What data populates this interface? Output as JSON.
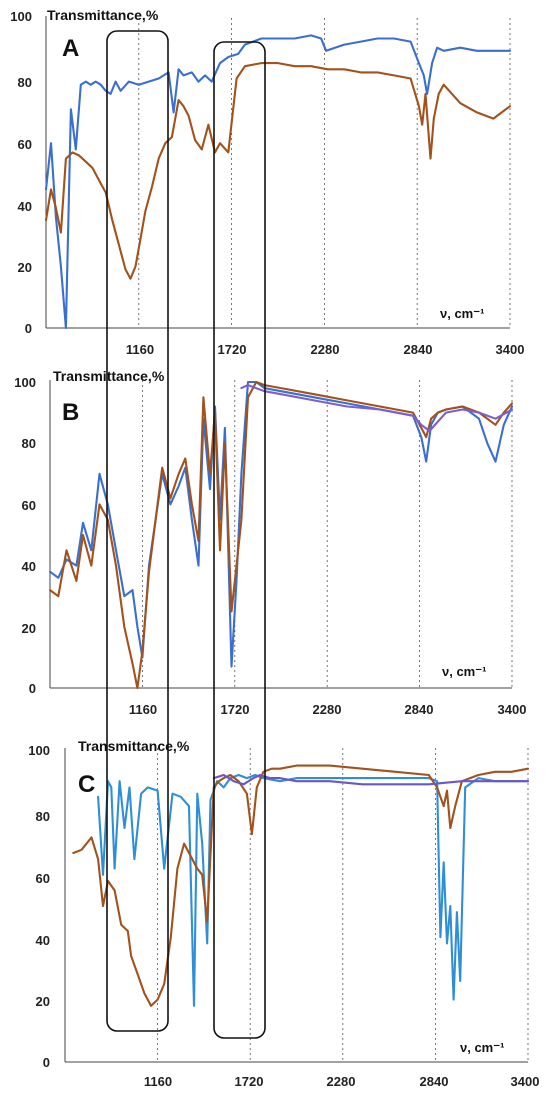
{
  "chart_data": [
    {
      "type": "line",
      "panel": "A",
      "ylabel": "Transmittance,%",
      "xlabel": "ν, cm⁻¹",
      "ylim": [
        0,
        100
      ],
      "xlim": [
        600,
        3400
      ],
      "yticks": [
        "0",
        "20",
        "40",
        "60",
        "80",
        "100"
      ],
      "xticks": [
        "1160",
        "1720",
        "2280",
        "2840",
        "3400"
      ],
      "grid": "x-dotted",
      "series": [
        {
          "color": "#3a6fd0",
          "x": [
            600,
            630,
            660,
            690,
            720,
            750,
            780,
            810,
            840,
            870,
            900,
            930,
            960,
            990,
            1020,
            1050,
            1100,
            1160,
            1220,
            1280,
            1340,
            1370,
            1400,
            1430,
            1480,
            1520,
            1560,
            1600,
            1650,
            1700,
            1760,
            1800,
            1900,
            2000,
            2100,
            2200,
            2260,
            2290,
            2400,
            2500,
            2600,
            2700,
            2800,
            2850,
            2880,
            2900,
            2930,
            2960,
            3000,
            3100,
            3200,
            3300,
            3400
          ],
          "y": [
            45,
            60,
            36,
            20,
            0,
            71,
            58,
            79,
            80,
            79,
            80,
            79,
            77,
            76,
            80,
            77,
            80,
            79,
            80,
            81,
            83,
            70,
            84,
            82,
            83,
            80,
            82,
            80,
            86,
            88,
            89,
            92,
            94,
            94,
            94,
            95,
            94,
            90,
            92,
            93,
            94,
            94,
            93,
            86,
            82,
            76,
            86,
            91,
            90,
            91,
            90,
            90,
            90
          ]
        },
        {
          "color": "#a2521a",
          "x": [
            600,
            630,
            660,
            690,
            720,
            760,
            800,
            840,
            880,
            920,
            960,
            1000,
            1040,
            1080,
            1110,
            1140,
            1170,
            1200,
            1240,
            1280,
            1320,
            1360,
            1400,
            1430,
            1460,
            1500,
            1540,
            1580,
            1620,
            1650,
            1700,
            1750,
            1800,
            1900,
            2000,
            2100,
            2200,
            2300,
            2400,
            2500,
            2600,
            2700,
            2800,
            2850,
            2870,
            2890,
            2920,
            2940,
            2970,
            3000,
            3050,
            3100,
            3200,
            3300,
            3400
          ],
          "y": [
            35,
            45,
            39,
            31,
            55,
            57,
            56,
            54,
            52,
            48,
            44,
            35,
            27,
            19,
            16,
            20,
            29,
            38,
            46,
            55,
            60,
            62,
            74,
            72,
            69,
            61,
            58,
            66,
            57,
            60,
            57,
            81,
            85,
            86,
            86,
            85,
            85,
            84,
            84,
            83,
            83,
            82,
            81,
            72,
            66,
            76,
            55,
            68,
            76,
            79,
            76,
            73,
            70,
            68,
            72
          ]
        }
      ]
    },
    {
      "type": "line",
      "panel": "B",
      "ylabel": "Transmittance,%",
      "xlabel": "ν, cm⁻¹",
      "ylim": [
        0,
        100
      ],
      "xlim": [
        600,
        3400
      ],
      "yticks": [
        "0",
        "20",
        "40",
        "60",
        "80",
        "100"
      ],
      "xticks": [
        "1160",
        "1720",
        "2280",
        "2840",
        "3400"
      ],
      "grid": "x-dotted",
      "series": [
        {
          "color": "#3a6fd0",
          "x": [
            600,
            650,
            700,
            760,
            800,
            850,
            900,
            950,
            1000,
            1050,
            1100,
            1130,
            1160,
            1200,
            1240,
            1280,
            1330,
            1380,
            1420,
            1460,
            1500,
            1530,
            1570,
            1600,
            1630,
            1660,
            1700,
            1730,
            1760,
            1800,
            1850,
            1900,
            2000,
            2200,
            2400,
            2600,
            2800,
            2850,
            2880,
            2910,
            2950,
            3000,
            3100,
            3200,
            3250,
            3300,
            3350,
            3400
          ],
          "y": [
            38,
            36,
            42,
            40,
            54,
            45,
            70,
            60,
            45,
            30,
            32,
            20,
            10,
            40,
            55,
            70,
            60,
            66,
            72,
            55,
            40,
            88,
            65,
            92,
            55,
            85,
            7,
            35,
            70,
            100,
            100,
            98,
            97,
            95,
            93,
            91,
            89,
            82,
            74,
            86,
            90,
            91,
            92,
            88,
            80,
            74,
            86,
            92
          ]
        },
        {
          "color": "#a2521a",
          "x": [
            600,
            650,
            700,
            760,
            800,
            850,
            900,
            950,
            1000,
            1050,
            1100,
            1130,
            1160,
            1200,
            1240,
            1280,
            1330,
            1380,
            1420,
            1460,
            1500,
            1530,
            1570,
            1600,
            1630,
            1660,
            1700,
            1730,
            1760,
            1800,
            1850,
            1900,
            2000,
            2200,
            2400,
            2600,
            2800,
            2850,
            2880,
            2910,
            2950,
            3000,
            3100,
            3200,
            3250,
            3300,
            3350,
            3400
          ],
          "y": [
            32,
            30,
            45,
            35,
            50,
            40,
            60,
            55,
            40,
            20,
            8,
            0,
            12,
            38,
            55,
            72,
            62,
            70,
            75,
            60,
            48,
            95,
            70,
            90,
            45,
            80,
            25,
            40,
            55,
            95,
            100,
            99,
            98,
            96,
            94,
            92,
            90,
            85,
            82,
            88,
            90,
            91,
            92,
            90,
            88,
            86,
            90,
            93
          ]
        },
        {
          "color": "#7b5fd2",
          "x": [
            1760,
            1800,
            1900,
            2000,
            2200,
            2400,
            2600,
            2800,
            2850,
            2900,
            3000,
            3100,
            3200,
            3300,
            3400
          ],
          "y": [
            98,
            99,
            97,
            96,
            94,
            92,
            91,
            89,
            86,
            84,
            90,
            91,
            90,
            88,
            91
          ]
        }
      ]
    },
    {
      "type": "line",
      "panel": "C",
      "ylabel": "Transmittance,%",
      "xlabel": "ν, cm⁻¹",
      "ylim": [
        0,
        100
      ],
      "xlim": [
        600,
        3400
      ],
      "yticks": [
        "0",
        "20",
        "40",
        "60",
        "80",
        "100"
      ],
      "xticks": [
        "1160",
        "1720",
        "2280",
        "2840",
        "3400"
      ],
      "grid": "x-dotted",
      "series": [
        {
          "color": "#2f8fd6",
          "x": [
            800,
            830,
            860,
            880,
            900,
            930,
            960,
            990,
            1020,
            1060,
            1100,
            1160,
            1200,
            1250,
            1300,
            1350,
            1380,
            1400,
            1430,
            1460,
            1480,
            1520,
            1560,
            1600,
            1650,
            1700,
            1750,
            1800,
            1900,
            2000,
            2200,
            2400,
            2600,
            2800,
            2850,
            2870,
            2890,
            2910,
            2930,
            2950,
            2970,
            2990,
            3020,
            3100,
            3200,
            3300,
            3400
          ],
          "y": [
            85,
            60,
            90,
            88,
            62,
            90,
            75,
            88,
            65,
            86,
            88,
            87,
            62,
            86,
            85,
            82,
            18,
            86,
            70,
            38,
            84,
            90,
            88,
            91,
            92,
            91,
            92,
            91,
            90,
            91,
            91,
            91,
            91,
            91,
            90,
            40,
            64,
            38,
            50,
            20,
            48,
            26,
            88,
            91,
            90,
            90,
            90
          ]
        },
        {
          "color": "#a2521a",
          "x": [
            650,
            700,
            760,
            800,
            830,
            860,
            900,
            940,
            980,
            1000,
            1040,
            1080,
            1120,
            1160,
            1200,
            1240,
            1280,
            1320,
            1360,
            1400,
            1430,
            1460,
            1500,
            1530,
            1560,
            1600,
            1650,
            1700,
            1730,
            1760,
            1800,
            1850,
            1900,
            2000,
            2200,
            2400,
            2600,
            2800,
            2850,
            2870,
            2890,
            2910,
            2930,
            2960,
            3000,
            3100,
            3200,
            3300,
            3400
          ],
          "y": [
            67,
            68,
            72,
            65,
            50,
            58,
            55,
            44,
            42,
            34,
            28,
            22,
            18,
            20,
            25,
            40,
            62,
            70,
            66,
            62,
            60,
            45,
            88,
            90,
            91,
            92,
            90,
            86,
            73,
            88,
            93,
            94,
            94,
            95,
            95,
            94,
            93,
            92,
            88,
            85,
            82,
            87,
            75,
            82,
            90,
            92,
            93,
            93,
            94
          ]
        },
        {
          "color": "#6b56c8",
          "x": [
            1500,
            1560,
            1620,
            1680,
            1740,
            1780,
            1840,
            1900,
            2000,
            2200,
            2400,
            2600,
            2800,
            3000,
            3200,
            3400
          ],
          "y": [
            91,
            92,
            90,
            89,
            91,
            92,
            91,
            91,
            90,
            90,
            89,
            89,
            89,
            90,
            90,
            90
          ]
        }
      ]
    }
  ]
}
